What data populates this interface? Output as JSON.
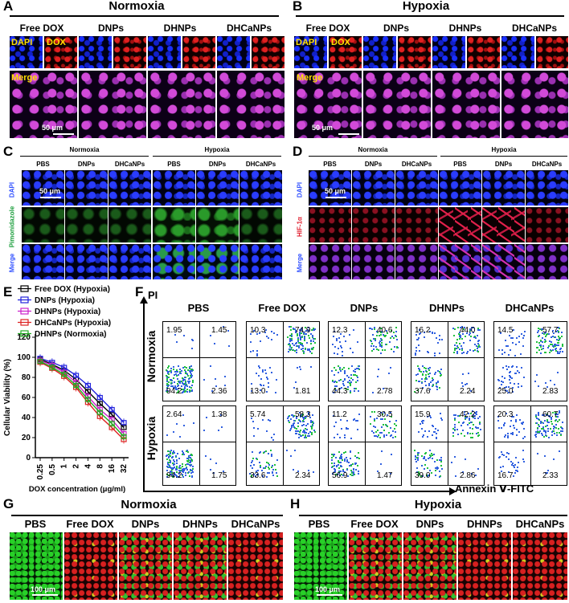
{
  "panels": {
    "A": {
      "letter": "A",
      "title": "Normoxia",
      "groups": [
        "Free DOX",
        "DNPs",
        "DHNPs",
        "DHCaNPs"
      ],
      "label_dapi": "DAPI",
      "label_dox": "DOX",
      "label_merge": "Merge",
      "scale": "50 μm"
    },
    "B": {
      "letter": "B",
      "title": "Hypoxia",
      "groups": [
        "Free DOX",
        "DNPs",
        "DHNPs",
        "DHCaNPs"
      ],
      "label_dapi": "DAPI",
      "label_dox": "DOX",
      "label_merge": "Merge",
      "scale": "50 μm"
    },
    "C": {
      "letter": "C",
      "cond_left": "Normoxia",
      "cond_right": "Hypoxia",
      "groups": [
        "PBS",
        "DNPs",
        "DHCaNPs",
        "PBS",
        "DNPs",
        "DHCaNPs"
      ],
      "rows": [
        "DAPI",
        "Pimonidazole",
        "Merge"
      ],
      "scale": "50 μm"
    },
    "D": {
      "letter": "D",
      "cond_left": "Normoxia",
      "cond_right": "Hypoxia",
      "groups": [
        "PBS",
        "DNPs",
        "DHCaNPs",
        "PBS",
        "DNPs",
        "DHCaNPs"
      ],
      "rows": [
        "DAPI",
        "HIF-1α",
        "Merge"
      ],
      "scale": "50 μm"
    },
    "E": {
      "letter": "E"
    },
    "F": {
      "letter": "F",
      "groups": [
        "PBS",
        "Free DOX",
        "DNPs",
        "DHNPs",
        "DHCaNPs"
      ],
      "rows": [
        "Normoxia",
        "Hypoxia"
      ],
      "y_axis": "PI",
      "x_axis": "Annexin Ⅴ-FITC",
      "quadrants": {
        "Normoxia": [
          [
            "1.95",
            "1.45",
            "94.2",
            "2.36"
          ],
          [
            "10.3",
            "74.9",
            "13.0",
            "1.81"
          ],
          [
            "12.3",
            "40.6",
            "44.3",
            "2.78"
          ],
          [
            "16.2",
            "44.0",
            "37.6",
            "2.24"
          ],
          [
            "14.5",
            "57.7",
            "25.0",
            "2.83"
          ]
        ],
        "Hypoxia": [
          [
            "2.64",
            "1.38",
            "94.2",
            "1.75"
          ],
          [
            "5.74",
            "58.3",
            "33.6",
            "2.34"
          ],
          [
            "11.2",
            "30.5",
            "56.9",
            "1.47"
          ],
          [
            "15.9",
            "42.2",
            "39.0",
            "2.86"
          ],
          [
            "20.3",
            "60.7",
            "16.7",
            "2.33"
          ]
        ]
      }
    },
    "G": {
      "letter": "G",
      "title": "Normoxia",
      "groups": [
        "PBS",
        "Free DOX",
        "DNPs",
        "DHNPs",
        "DHCaNPs"
      ],
      "scale": "100 μm"
    },
    "H": {
      "letter": "H",
      "title": "Hypoxia",
      "groups": [
        "PBS",
        "Free DOX",
        "DNPs",
        "DHNPs",
        "DHCaNPs"
      ],
      "scale": "100 μm"
    }
  },
  "chart_data": {
    "type": "line",
    "x": [
      "0.25",
      "0.5",
      "1",
      "2",
      "4",
      "8",
      "16",
      "32"
    ],
    "xlabel": "DOX concentration (μg/ml)",
    "ylabel": "Cellular Viability (%)",
    "ylim": [
      0,
      120
    ],
    "yticks": [
      "0",
      "20",
      "40",
      "60",
      "80",
      "100",
      "120"
    ],
    "legend_position": "top-right",
    "series": [
      {
        "name": "Free DOX (Hypoxia)",
        "color": "#000000",
        "values": [
          98,
          93,
          87,
          78,
          66,
          54,
          43,
          30
        ]
      },
      {
        "name": "DNPs (Hypoxia)",
        "color": "#2222dd",
        "values": [
          99,
          95,
          90,
          82,
          72,
          60,
          48,
          35
        ]
      },
      {
        "name": "DHNPs (Hypoxia)",
        "color": "#cc22cc",
        "values": [
          97,
          92,
          85,
          75,
          61,
          48,
          38,
          24
        ]
      },
      {
        "name": "DHCaNPs (Hypoxia)",
        "color": "#dd2222",
        "values": [
          95,
          89,
          81,
          70,
          55,
          41,
          30,
          18
        ]
      },
      {
        "name": "DHNPs (Normoxia)",
        "color": "#22aa22",
        "values": [
          96,
          90,
          83,
          72,
          58,
          45,
          34,
          21
        ]
      }
    ]
  }
}
